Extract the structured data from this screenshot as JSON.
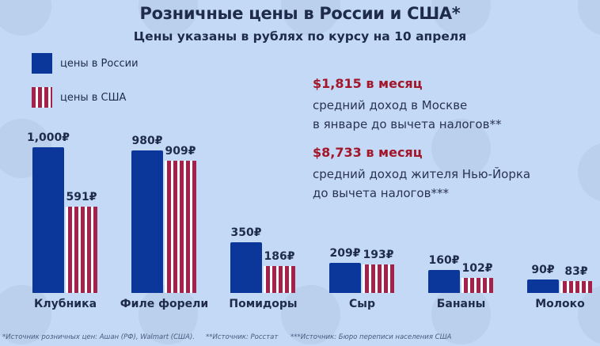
{
  "header": {
    "title": "Розничные цены в России и США*",
    "subtitle": "Цены указаны в рублях по курсу на 10 апреля"
  },
  "legend": {
    "russia": "цены в России",
    "usa": "цены в США"
  },
  "stats": [
    {
      "value": "$1,815 в месяц",
      "line1": "средний доход в Москве",
      "line2": "в январе до вычета налогов**"
    },
    {
      "value": "$8,733 в месяц",
      "line1": "средний доход жителя Нью-Йорка",
      "line2": "до вычета налогов***"
    }
  ],
  "colors": {
    "background": "#c3d9f5",
    "russia": "#0a3799",
    "usa_stripe": "#a5214a",
    "accent_text": "#a3162a"
  },
  "chart_data": {
    "type": "bar",
    "title": "Розничные цены в России и США*",
    "subtitle": "Цены указаны в рублях по курсу на 10 апреля",
    "categories": [
      "Клубника",
      "Филе форели",
      "Помидоры",
      "Сыр",
      "Бананы",
      "Молоко"
    ],
    "series": [
      {
        "name": "цены в России",
        "values": [
          1000,
          980,
          350,
          209,
          160,
          90
        ]
      },
      {
        "name": "цены в США",
        "values": [
          591,
          909,
          186,
          193,
          102,
          83
        ]
      }
    ],
    "labels": {
      "russia": [
        "1,000₽",
        "980₽",
        "350₽",
        "209₽",
        "160₽",
        "90₽"
      ],
      "usa": [
        "591₽",
        "909₽",
        "186₽",
        "193₽",
        "102₽",
        "83₽"
      ]
    },
    "xlabel": "",
    "ylabel": "",
    "unit": "₽",
    "grid": false,
    "legend_position": "top-left"
  },
  "footnotes": {
    "f1": "*Источник розничных цен: Ашан (РФ), Walmart (США).",
    "f2": "**Источник: Росстат",
    "f3": "***Источник: Бюро переписи населения США"
  }
}
